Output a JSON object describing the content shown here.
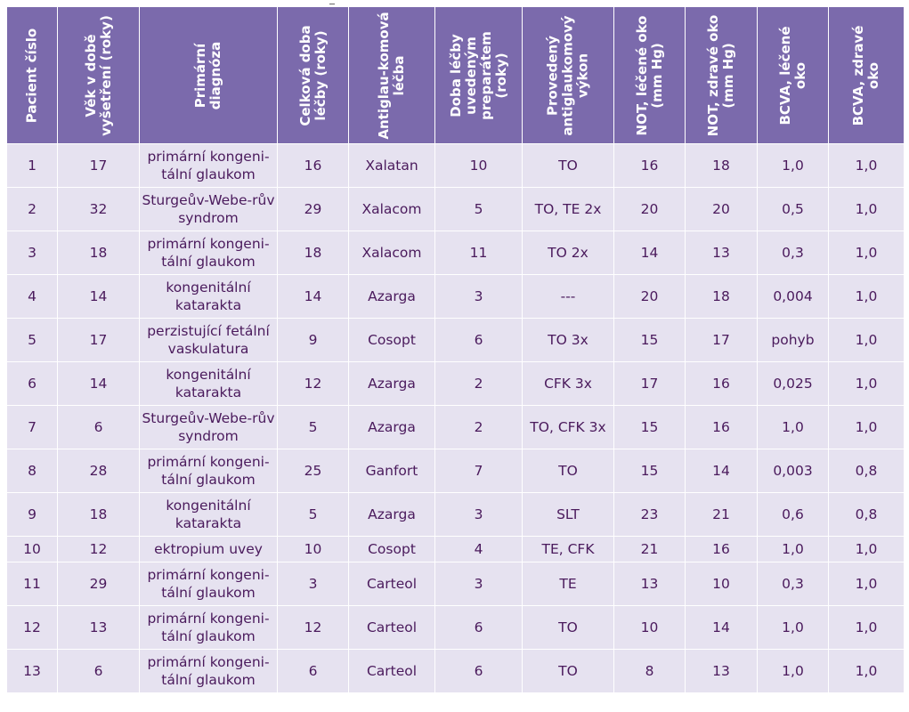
{
  "table": {
    "headers": [
      "Pacient číslo",
      "Věk v době vyšetření (roky)",
      "Primární diagnóza",
      "Celková doba léčby (roky)",
      "Antiglau-komová léčba",
      "Doba léčby uvedeným preparátem (roky)",
      "Provedený antiglaukomový výkon",
      "NOT, léčené oko (mm Hg)",
      "NOT, zdravé oko (mm Hg)",
      "BCVA, léčené oko",
      "BCVA, zdravé oko"
    ],
    "rows": [
      [
        "1",
        "17",
        "primární kongeni-tální glaukom",
        "16",
        "Xalatan",
        "10",
        "TO",
        "16",
        "18",
        "1,0",
        "1,0"
      ],
      [
        "2",
        "32",
        "Sturgeův-Webe-rův syndrom",
        "29",
        "Xalacom",
        "5",
        "TO, TE 2x",
        "20",
        "20",
        "0,5",
        "1,0"
      ],
      [
        "3",
        "18",
        "primární kongeni-tální glaukom",
        "18",
        "Xalacom",
        "11",
        "TO 2x",
        "14",
        "13",
        "0,3",
        "1,0"
      ],
      [
        "4",
        "14",
        "kongenitální katarakta",
        "14",
        "Azarga",
        "3",
        "---",
        "20",
        "18",
        "0,004",
        "1,0"
      ],
      [
        "5",
        "17",
        "perzistující fetální vaskulatura",
        "9",
        "Cosopt",
        "6",
        "TO 3x",
        "15",
        "17",
        "pohyb",
        "1,0"
      ],
      [
        "6",
        "14",
        "kongenitální katarakta",
        "12",
        "Azarga",
        "2",
        "CFK 3x",
        "17",
        "16",
        "0,025",
        "1,0"
      ],
      [
        "7",
        "6",
        "Sturgeův-Webe-rův syndrom",
        "5",
        "Azarga",
        "2",
        "TO, CFK 3x",
        "15",
        "16",
        "1,0",
        "1,0"
      ],
      [
        "8",
        "28",
        "primární kongeni-tální glaukom",
        "25",
        "Ganfort",
        "7",
        "TO",
        "15",
        "14",
        "0,003",
        "0,8"
      ],
      [
        "9",
        "18",
        "kongenitální katarakta",
        "5",
        "Azarga",
        "3",
        "SLT",
        "23",
        "21",
        "0,6",
        "0,8"
      ],
      [
        "10",
        "12",
        "ektropium uvey",
        "10",
        "Cosopt",
        "4",
        "TE, CFK",
        "21",
        "16",
        "1,0",
        "1,0"
      ],
      [
        "11",
        "29",
        "primární kongeni-tální glaukom",
        "3",
        "Carteol",
        "3",
        "TE",
        "13",
        "10",
        "0,3",
        "1,0"
      ],
      [
        "12",
        "13",
        "primární kongeni-tální glaukom",
        "12",
        "Carteol",
        "6",
        "TO",
        "10",
        "14",
        "1,0",
        "1,0"
      ],
      [
        "13",
        "6",
        "primární kongeni-tální glaukom",
        "6",
        "Carteol",
        "6",
        "TO",
        "8",
        "13",
        "1,0",
        "1,0"
      ]
    ]
  }
}
